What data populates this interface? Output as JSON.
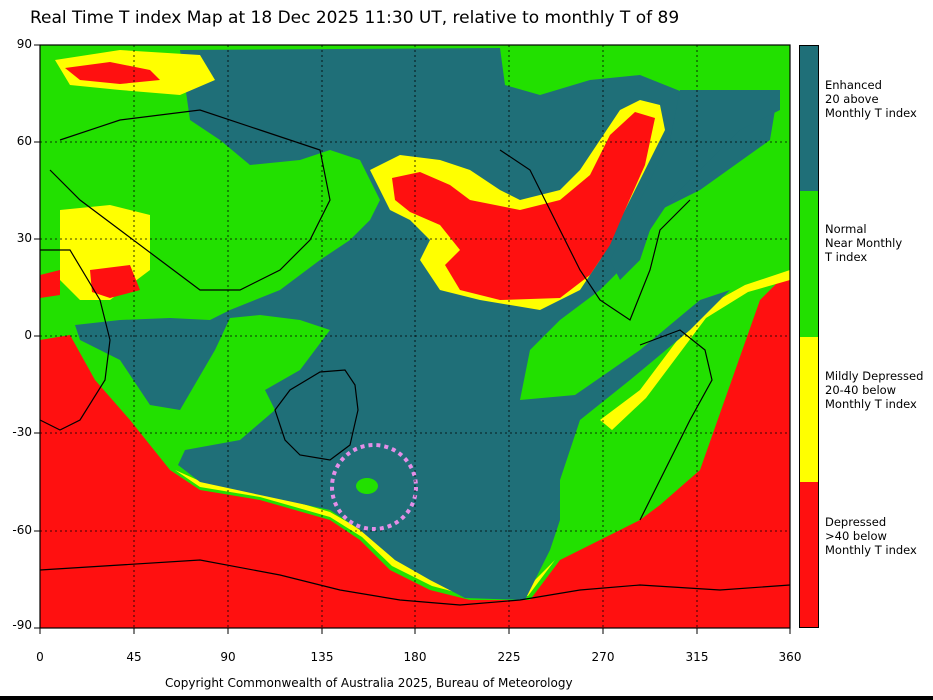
{
  "title": "Real Time T index Map at 18 Dec 2025 11:30 UT, relative to monthly T of 89",
  "y_ticks": [
    "90",
    "60",
    "30",
    "0",
    "-30",
    "-60",
    "-90"
  ],
  "x_ticks": [
    "0",
    "45",
    "90",
    "135",
    "180",
    "225",
    "270",
    "315",
    "360"
  ],
  "legend": {
    "items": [
      {
        "label": "Enhanced\n20 above\nMonthly T index",
        "color": "#1f6f78"
      },
      {
        "label": "Normal\nNear Monthly\nT index",
        "color": "#22e000"
      },
      {
        "label": "Mildly Depressed\n20-40 below\nMonthly T index",
        "color": "#ffff00"
      },
      {
        "label": "Depressed\n>40 below\nMonthly T index",
        "color": "#ff1010"
      }
    ]
  },
  "copyright": "Copyright Commonwealth of Australia 2025, Bureau of Meteorology",
  "colors": {
    "enhanced": "#1f6f78",
    "normal": "#22e000",
    "mild": "#ffff00",
    "depressed": "#ff1010",
    "highlight": "#e48ee8"
  }
}
